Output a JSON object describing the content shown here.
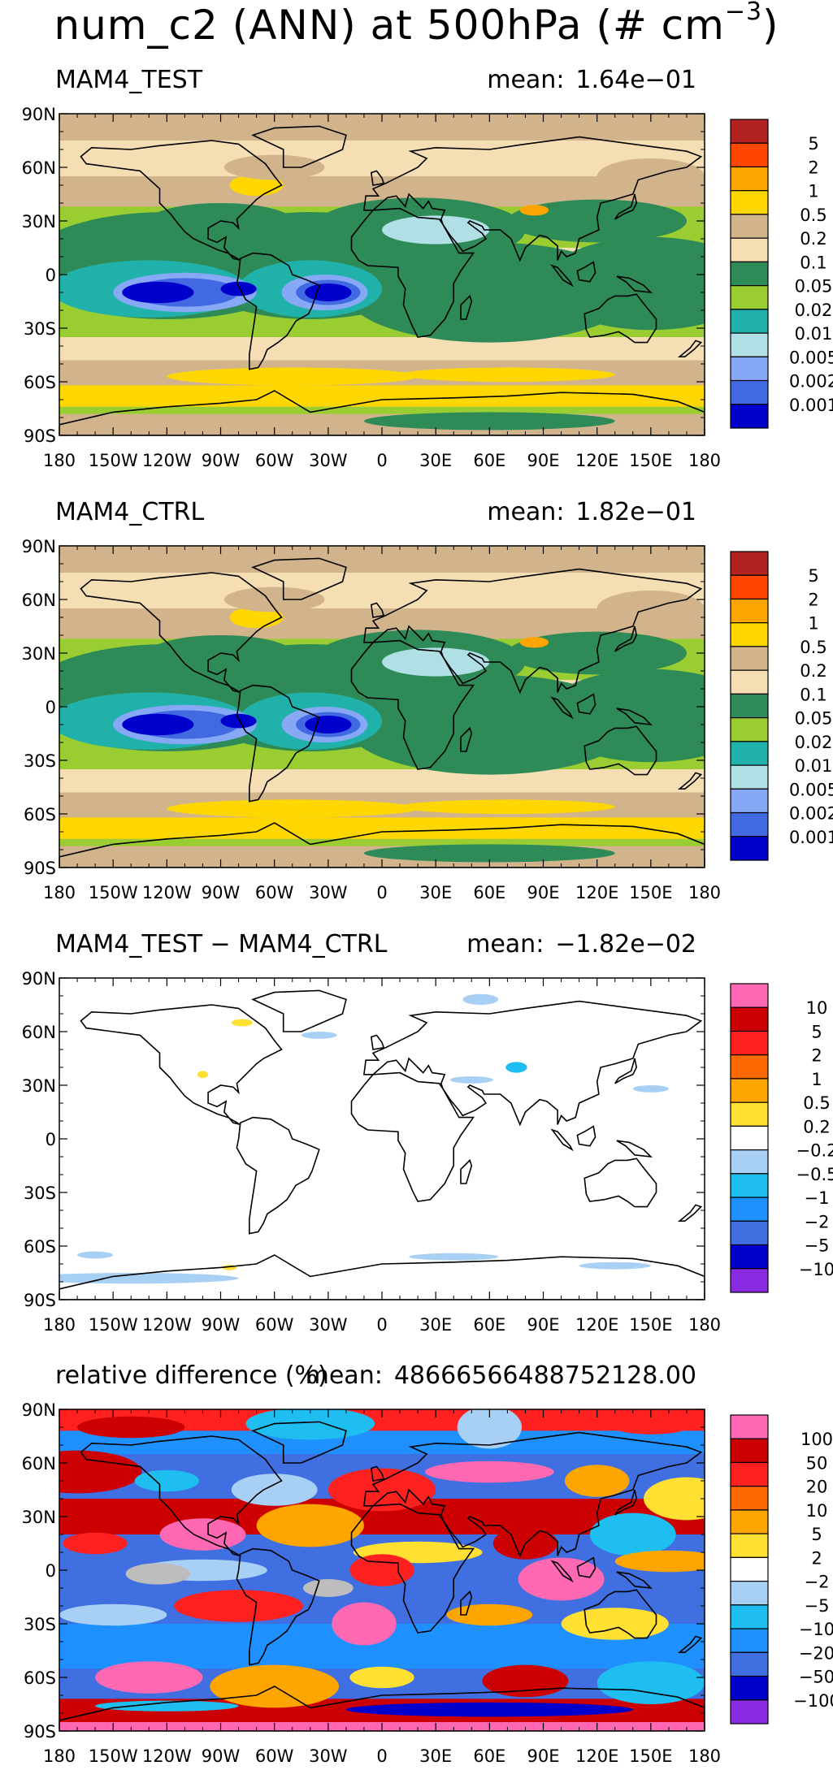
{
  "title": {
    "main": "num_c2 (ANN) at 500hPa (# cm",
    "unit_sup": "−3",
    "close": ")"
  },
  "axes": {
    "lat_ticks": [
      "90N",
      "60N",
      "30N",
      "0",
      "30S",
      "60S",
      "90S"
    ],
    "lon_ticks": [
      "180",
      "150W",
      "120W",
      "90W",
      "60W",
      "30W",
      "0",
      "30E",
      "60E",
      "90E",
      "120E",
      "150E",
      "180"
    ]
  },
  "panels": [
    {
      "label": "MAM4_TEST",
      "mean_label": "mean:",
      "mean_value": "1.64e−01",
      "colorbar": {
        "colors": [
          "#b22222",
          "#ff4500",
          "#ffa500",
          "#ffd700",
          "#d2b48c",
          "#f5deb3",
          "#2e8b57",
          "#9acd32",
          "#20b2aa",
          "#b0e0e6",
          "#87a9f5",
          "#4169e1",
          "#0000cd"
        ],
        "labels": [
          "5",
          "2",
          "1",
          "0.5",
          "0.2",
          "0.1",
          "0.05",
          "0.02",
          "0.01",
          "0.005",
          "0.002",
          "0.001"
        ]
      }
    },
    {
      "label": "MAM4_CTRL",
      "mean_label": "mean:",
      "mean_value": "1.82e−01",
      "colorbar": {
        "colors": [
          "#b22222",
          "#ff4500",
          "#ffa500",
          "#ffd700",
          "#d2b48c",
          "#f5deb3",
          "#2e8b57",
          "#9acd32",
          "#20b2aa",
          "#b0e0e6",
          "#87a9f5",
          "#4169e1",
          "#0000cd"
        ],
        "labels": [
          "5",
          "2",
          "1",
          "0.5",
          "0.2",
          "0.1",
          "0.05",
          "0.02",
          "0.01",
          "0.005",
          "0.002",
          "0.001"
        ]
      }
    },
    {
      "label": "MAM4_TEST − MAM4_CTRL",
      "mean_label": "mean:",
      "mean_value": "−1.82e−02",
      "colorbar": {
        "colors": [
          "#ff69b4",
          "#cc0000",
          "#ff2020",
          "#ff6a00",
          "#ffa500",
          "#ffe033",
          "#ffffff",
          "#a8d0f5",
          "#1fbef0",
          "#1e90ff",
          "#3f6fe0",
          "#0000cd",
          "#8a2be2"
        ],
        "labels": [
          "10",
          "5",
          "2",
          "1",
          "0.5",
          "0.2",
          "−0.2",
          "−0.5",
          "−1",
          "−2",
          "−5",
          "−10"
        ]
      }
    },
    {
      "label": "relative difference (%)",
      "mean_label": "mean:",
      "mean_value": "48666566488752128.00",
      "colorbar": {
        "colors": [
          "#ff69b4",
          "#cc0000",
          "#ff2020",
          "#ff6a00",
          "#ffa500",
          "#ffe033",
          "#ffffff",
          "#a8d0f5",
          "#1fbef0",
          "#1e90ff",
          "#3f6fe0",
          "#0000cd",
          "#8a2be2"
        ],
        "labels": [
          "100",
          "50",
          "20",
          "10",
          "5",
          "2",
          "−2",
          "−5",
          "−10",
          "−20",
          "−50",
          "−100"
        ]
      }
    }
  ],
  "chart_data": [
    {
      "type": "heatmap",
      "title": "MAM4_TEST",
      "mean": "1.64e−01",
      "xlabel": "",
      "ylabel": "",
      "xlim": [
        -180,
        180
      ],
      "ylim": [
        -90,
        90
      ],
      "levels": [
        0.001,
        0.002,
        0.005,
        0.01,
        0.02,
        0.05,
        0.1,
        0.2,
        0.5,
        1,
        2,
        5
      ]
    },
    {
      "type": "heatmap",
      "title": "MAM4_CTRL",
      "mean": "1.82e−01",
      "xlabel": "",
      "ylabel": "",
      "xlim": [
        -180,
        180
      ],
      "ylim": [
        -90,
        90
      ],
      "levels": [
        0.001,
        0.002,
        0.005,
        0.01,
        0.02,
        0.05,
        0.1,
        0.2,
        0.5,
        1,
        2,
        5
      ]
    },
    {
      "type": "heatmap",
      "title": "MAM4_TEST − MAM4_CTRL",
      "mean": "−1.82e−02",
      "xlabel": "",
      "ylabel": "",
      "xlim": [
        -180,
        180
      ],
      "ylim": [
        -90,
        90
      ],
      "levels": [
        -10,
        -5,
        -2,
        -1,
        -0.5,
        -0.2,
        0.2,
        0.5,
        1,
        2,
        5,
        10
      ]
    },
    {
      "type": "heatmap",
      "title": "relative difference (%)",
      "mean": "48666566488752128.00",
      "xlabel": "",
      "ylabel": "",
      "xlim": [
        -180,
        180
      ],
      "ylim": [
        -90,
        90
      ],
      "levels": [
        -100,
        -50,
        -20,
        -10,
        -5,
        -2,
        2,
        5,
        10,
        20,
        50,
        100
      ]
    }
  ]
}
